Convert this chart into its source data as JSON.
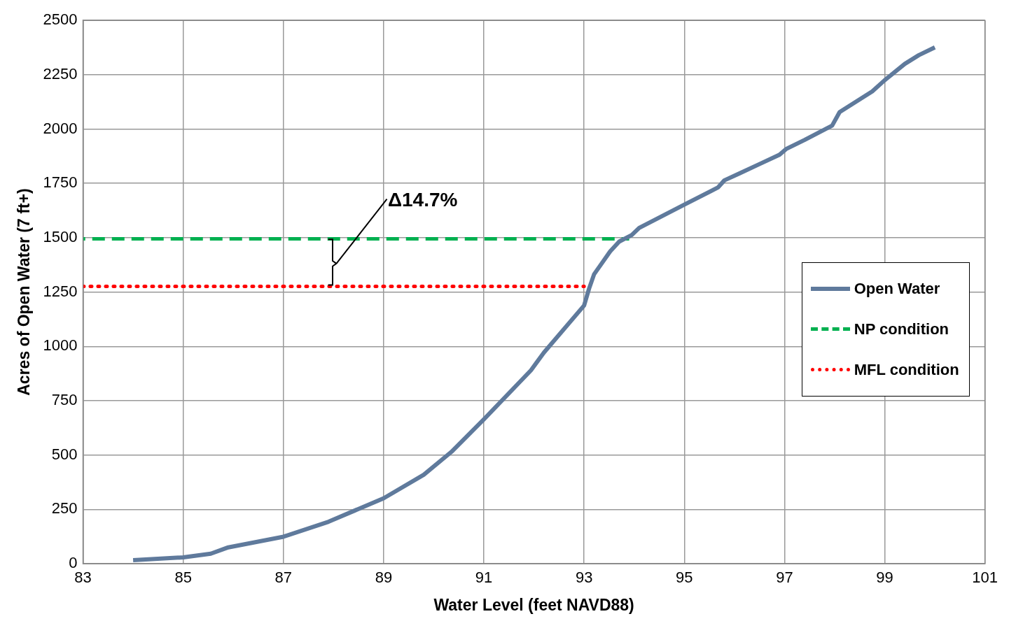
{
  "chart_data": {
    "type": "line",
    "xlabel": "Water Level (feet NAVD88)",
    "ylabel": "Acres of Open Water (7 ft+)",
    "xlim": [
      83,
      101
    ],
    "xticks": [
      83,
      85,
      87,
      89,
      91,
      93,
      95,
      97,
      99,
      101
    ],
    "ylim": [
      0,
      2500
    ],
    "yticks": [
      0,
      250,
      500,
      750,
      1000,
      1250,
      1500,
      1750,
      2000,
      2250,
      2500
    ],
    "grid": true,
    "legend": "right",
    "marker": "none",
    "annotations": [
      "Δ14.7%"
    ],
    "series": [
      {
        "name": "Open Water",
        "color": "#5f7a9c",
        "line_style": "solid",
        "x": [
          84,
          85,
          85.55,
          85.9,
          87,
          87.9,
          89,
          89.8,
          90.35,
          91,
          91.94,
          92.2,
          93,
          93.1,
          93.2,
          93.35,
          93.52,
          93.7,
          93.95,
          94.1,
          95,
          95.67,
          95.8,
          96.1,
          96.53,
          96.9,
          97.03,
          97.4,
          97.95,
          98.1,
          98.75,
          99,
          99.4,
          99.68,
          100
        ],
        "values": [
          16,
          29,
          46,
          75,
          124,
          193,
          301,
          409,
          514,
          664,
          890,
          972,
          1188,
          1266,
          1332,
          1381,
          1437,
          1482,
          1512,
          1545,
          1652,
          1731,
          1764,
          1796,
          1842,
          1882,
          1908,
          1950,
          2016,
          2078,
          2173,
          2225,
          2300,
          2340,
          2376
        ]
      },
      {
        "name": "NP condition",
        "color": "#00b050",
        "line_style": "dashed",
        "x": [
          83,
          93.9
        ],
        "values": [
          1495,
          1495
        ]
      },
      {
        "name": "MFL condition",
        "color": "#ff0000",
        "line_style": "dotted",
        "x": [
          83,
          93
        ],
        "values": [
          1276,
          1276
        ]
      }
    ]
  }
}
